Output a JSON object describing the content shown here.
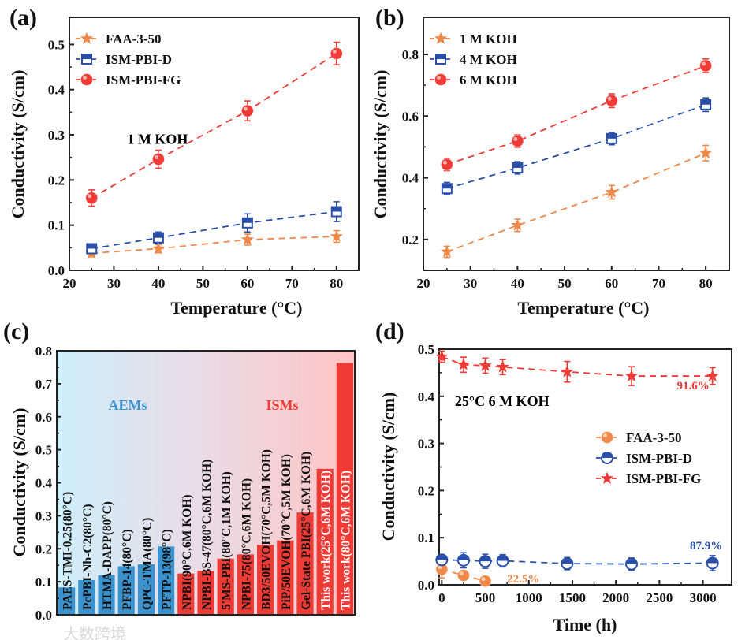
{
  "watermark": "大数跨境",
  "chart_data": [
    {
      "panel": "(a)",
      "type": "line",
      "xlabel": "Temperature (°C)",
      "ylabel": "Conductivity (S/cm)",
      "xlim": [
        20,
        85
      ],
      "ylim": [
        0,
        0.56
      ],
      "xticks": [
        20,
        30,
        40,
        50,
        60,
        70,
        80
      ],
      "xtick_labels": [
        "20",
        "30",
        "40",
        "50",
        "60",
        "70",
        "80"
      ],
      "yticks": [
        0,
        0.1,
        0.2,
        0.3,
        0.4,
        0.5
      ],
      "ytick_labels": [
        "0.0",
        "0.1",
        "0.2",
        "0.3",
        "0.4",
        "0.5"
      ],
      "annotations": [
        {
          "text": "1 M KOH",
          "x": 33,
          "y": 0.28,
          "color": "#000000"
        }
      ],
      "legend": "top-left",
      "series": [
        {
          "name": "FAA-3-50",
          "color": "#f0884a",
          "marker": "star",
          "x": [
            25,
            40,
            60,
            80
          ],
          "values": [
            0.038,
            0.048,
            0.068,
            0.075
          ],
          "yerr": [
            0.008,
            0.009,
            0.012,
            0.013
          ]
        },
        {
          "name": "ISM-PBI-D",
          "color": "#2a4fa8",
          "marker": "half-square",
          "x": [
            25,
            40,
            60,
            80
          ],
          "values": [
            0.048,
            0.072,
            0.105,
            0.13
          ],
          "yerr": [
            0.01,
            0.013,
            0.02,
            0.022
          ]
        },
        {
          "name": "ISM-PBI-FG",
          "color": "#ee3b36",
          "marker": "circle",
          "x": [
            25,
            40,
            60,
            80
          ],
          "values": [
            0.16,
            0.246,
            0.353,
            0.48
          ],
          "yerr": [
            0.018,
            0.02,
            0.022,
            0.025
          ]
        }
      ]
    },
    {
      "panel": "(b)",
      "type": "line",
      "xlabel": "Temperature (°C)",
      "ylabel": "Conductivity (S/cm)",
      "xlim": [
        20,
        85
      ],
      "ylim": [
        0.1,
        0.92
      ],
      "xticks": [
        20,
        30,
        40,
        50,
        60,
        70,
        80
      ],
      "xtick_labels": [
        "20",
        "30",
        "40",
        "50",
        "60",
        "70",
        "80"
      ],
      "yticks": [
        0.2,
        0.4,
        0.6,
        0.8
      ],
      "ytick_labels": [
        "0.2",
        "0.4",
        "0.6",
        "0.8"
      ],
      "annotations": [],
      "legend": "top-left",
      "series": [
        {
          "name": "1 M KOH",
          "color": "#f0884a",
          "marker": "star",
          "x": [
            25,
            40,
            60,
            80
          ],
          "values": [
            0.16,
            0.246,
            0.353,
            0.48
          ],
          "yerr": [
            0.018,
            0.02,
            0.022,
            0.025
          ]
        },
        {
          "name": "4 M KOH",
          "color": "#2a4fa8",
          "marker": "half-square",
          "x": [
            25,
            40,
            60,
            80
          ],
          "values": [
            0.365,
            0.432,
            0.527,
            0.637
          ],
          "yerr": [
            0.02,
            0.02,
            0.02,
            0.022
          ]
        },
        {
          "name": "6 M KOH",
          "color": "#ee3b36",
          "marker": "circle",
          "x": [
            25,
            40,
            60,
            80
          ],
          "values": [
            0.443,
            0.519,
            0.65,
            0.763
          ],
          "yerr": [
            0.02,
            0.02,
            0.022,
            0.022
          ]
        }
      ]
    },
    {
      "panel": "(c)",
      "type": "bar",
      "xlabel": "",
      "ylabel": "Conductivity (S/cm)",
      "ylim": [
        0,
        0.8
      ],
      "yticks": [
        0,
        0.1,
        0.2,
        0.3,
        0.4,
        0.5,
        0.6,
        0.7,
        0.8
      ],
      "ytick_labels": [
        "0.0",
        "0.1",
        "0.2",
        "0.3",
        "0.4",
        "0.5",
        "0.6",
        "0.7",
        "0.8"
      ],
      "group_labels": [
        {
          "text": "AEMs",
          "color": "#3a93cf"
        },
        {
          "text": "ISMs",
          "color": "#ee3b36"
        }
      ],
      "categories": [
        "PAES-TMI-0.25(80°C)",
        "PcPBI-Nb-C2(80°C)",
        "HTMA-DAPP(80°C)",
        "PFBP-14(80°C)",
        "QPC-TMA(80°C)",
        "PFTP-13(98°C)",
        "NPBI(90°C,6M KOH)",
        "NPBI-BS-47(80°C,6M KOH)",
        "5'MS-PBI(80°C,1M KOH)",
        "NPBI-75(80°C,6M KOH)",
        "BD3/50EVOH(70°C,5M KOH)",
        "PiP/50EVOH(70°C,5M KOH)",
        "Gel-State PBI(25°C,6M KOH)",
        "This work(25°C,6M KOH)",
        "This work(80°C,6M KOH)"
      ],
      "values": [
        0.083,
        0.105,
        0.12,
        0.147,
        0.153,
        0.207,
        0.125,
        0.133,
        0.17,
        0.183,
        0.212,
        0.225,
        0.31,
        0.442,
        0.763
      ],
      "groups": [
        "AEMs",
        "AEMs",
        "AEMs",
        "AEMs",
        "AEMs",
        "AEMs",
        "ISMs",
        "ISMs",
        "ISMs",
        "ISMs",
        "ISMs",
        "ISMs",
        "ISMs",
        "ISMs",
        "ISMs"
      ],
      "colors": {
        "AEMs": "#3a93cf",
        "ISMs": "#ee3b36"
      }
    },
    {
      "panel": "(d)",
      "type": "line",
      "xlabel": "Time (h)",
      "ylabel": "Conductivity (S/cm)",
      "xlim": [
        -30,
        3330
      ],
      "ylim": [
        0,
        0.5
      ],
      "xticks": [
        0,
        500,
        1000,
        1500,
        2000,
        2500,
        3000
      ],
      "xtick_labels": [
        "0",
        "500",
        "1000",
        "1500",
        "2000",
        "2500",
        "3000"
      ],
      "yticks": [
        0,
        0.1,
        0.2,
        0.3,
        0.4,
        0.5
      ],
      "ytick_labels": [
        "0.0",
        "0.1",
        "0.2",
        "0.3",
        "0.4",
        "0.5"
      ],
      "annotations": [
        {
          "text": "25°C 6 M KOH",
          "x": 150,
          "y": 0.38,
          "color": "#000000"
        },
        {
          "text": "91.6%",
          "x": 2700,
          "y": 0.415,
          "color": "#ee3b36"
        },
        {
          "text": "87.9%",
          "x": 2850,
          "y": 0.075,
          "color": "#2a4fa8"
        },
        {
          "text": "22.5%",
          "x": 750,
          "y": 0.005,
          "color": "#f0884a"
        }
      ],
      "legend": "center-right",
      "series": [
        {
          "name": "FAA-3-50",
          "color": "#f0884a",
          "marker": "circle",
          "x": [
            0,
            250,
            500
          ],
          "values": [
            0.033,
            0.02,
            0.008
          ],
          "yerr": [
            0.018,
            0.01,
            0.006
          ]
        },
        {
          "name": "ISM-PBI-D",
          "color": "#2a4fa8",
          "marker": "half-circle",
          "x": [
            0,
            250,
            500,
            700,
            1440,
            2180,
            3110
          ],
          "values": [
            0.053,
            0.052,
            0.05,
            0.051,
            0.045,
            0.044,
            0.046
          ],
          "yerr": [
            0.01,
            0.016,
            0.015,
            0.013,
            0.013,
            0.013,
            0.016
          ]
        },
        {
          "name": "ISM-PBI-FG",
          "color": "#ee3b36",
          "marker": "star",
          "x": [
            0,
            250,
            500,
            700,
            1440,
            2180,
            3110
          ],
          "values": [
            0.484,
            0.467,
            0.465,
            0.462,
            0.452,
            0.443,
            0.443
          ],
          "yerr": [
            0.012,
            0.016,
            0.016,
            0.016,
            0.022,
            0.02,
            0.018
          ]
        }
      ]
    }
  ]
}
